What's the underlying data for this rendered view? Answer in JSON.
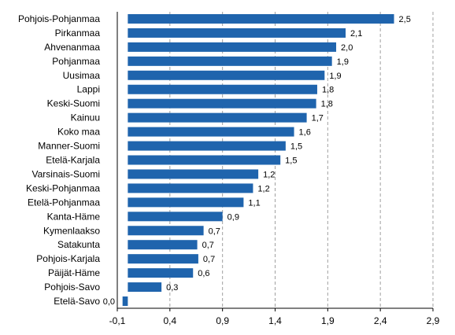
{
  "chart_data": {
    "type": "bar",
    "orientation": "horizontal",
    "categories": [
      "Pohjois-Pohjanmaa",
      "Pirkanmaa",
      "Ahvenanmaa",
      "Pohjanmaa",
      "Uusimaa",
      "Lappi",
      "Keski-Suomi",
      "Kainuu",
      "Koko maa",
      "Manner-Suomi",
      "Etelä-Karjala",
      "Varsinais-Suomi",
      "Keski-Pohjanmaa",
      "Etelä-Pohjanmaa",
      "Kanta-Häme",
      "Kymenlaakso",
      "Satakunta",
      "Pohjois-Karjala",
      "Päijät-Häme",
      "Pohjois-Savo",
      "Etelä-Savo"
    ],
    "values": [
      2.53,
      2.07,
      1.98,
      1.94,
      1.87,
      1.8,
      1.79,
      1.7,
      1.58,
      1.5,
      1.45,
      1.24,
      1.19,
      1.1,
      0.9,
      0.72,
      0.66,
      0.67,
      0.62,
      0.32,
      -0.05
    ],
    "value_labels": [
      "2,5",
      "2,1",
      "2,0",
      "1,9",
      "1,9",
      "1,8",
      "1,8",
      "1,7",
      "1,6",
      "1,5",
      "1,5",
      "1,2",
      "1,2",
      "1,1",
      "0,9",
      "0,7",
      "0,7",
      "0,7",
      "0,6",
      "0,3",
      "0,0"
    ],
    "x_ticks": [
      -0.1,
      0.4,
      0.9,
      1.4,
      1.9,
      2.4,
      2.9
    ],
    "x_tick_labels": [
      "-0,1",
      "0,4",
      "0,9",
      "1,4",
      "1,9",
      "2,4",
      "2,9"
    ],
    "xlim": [
      -0.1,
      2.9
    ],
    "title": "",
    "xlabel": "",
    "ylabel": "",
    "grid": "vertical-dashed",
    "bar_color": "#1f64ad",
    "grid_color": "#a0a0a0",
    "axis_color": "#000000"
  }
}
